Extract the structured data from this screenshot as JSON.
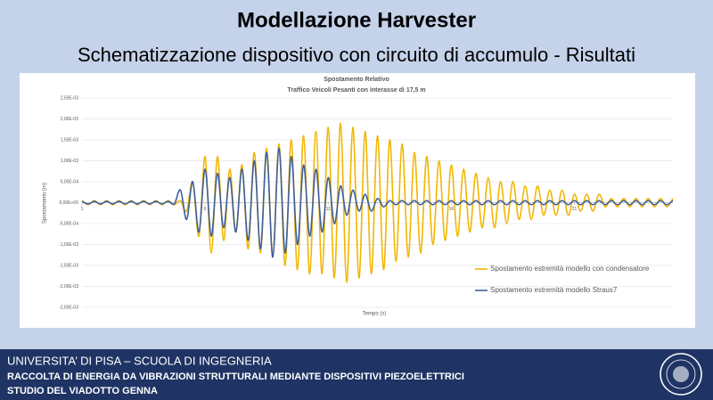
{
  "slide": {
    "title": "Modellazione Harvester",
    "subtitle": "Schematizzazione dispositivo con circuito di accumulo - Risultati"
  },
  "chart_data": {
    "type": "line",
    "title": "Spostamento Relativo",
    "subtitle": "Traffico Veicoli Pesanti con interasse di 17,5 m",
    "x_label": "Tempo (s)",
    "y_label": "Spostamento (m)",
    "x": [
      1,
      1.25,
      1.5,
      1.75,
      2,
      2.25,
      2.5,
      2.75,
      3,
      3.25,
      3.5,
      3.75,
      4,
      4.25,
      4.5,
      4.75,
      5,
      5.25,
      5.5,
      5.75,
      6,
      6.25,
      6.5,
      6.75,
      7,
      7.25,
      7.5,
      7.75,
      8,
      8.25,
      8.5,
      8.75,
      9,
      9.25,
      9.5,
      9.75,
      10,
      10.25,
      10.5,
      10.75,
      11,
      11.25,
      11.5,
      11.75,
      12,
      12.25,
      12.5,
      12.75,
      13,
      13.25,
      13.5,
      13.75,
      14,
      14.25,
      14.5,
      14.75,
      15,
      15.25,
      15.5,
      15.75,
      16,
      16.25,
      16.5,
      16.75,
      17,
      17.25,
      17.5,
      17.75,
      18,
      18.25,
      18.5,
      18.75,
      19,
      19.25,
      19.5,
      19.75,
      20,
      20.25,
      20.5,
      20.75,
      21,
      21.25,
      21.5,
      21.75,
      22,
      22.25,
      22.5,
      22.75,
      23,
      23.25,
      23.5,
      23.75,
      24,
      24.25,
      24.5,
      24.75,
      25
    ],
    "xlim": [
      1,
      25
    ],
    "xticks": [
      1,
      6,
      11,
      16,
      21
    ],
    "ylim": [
      -0.0025,
      0.0025
    ],
    "yticks": [
      {
        "value": -0.0025,
        "label": "-2,50E-03"
      },
      {
        "value": -0.002,
        "label": "-2,00E-03"
      },
      {
        "value": -0.0015,
        "label": "-1,50E-03"
      },
      {
        "value": -0.001,
        "label": "-1,00E-03"
      },
      {
        "value": -0.0005,
        "label": "-5,00E-04"
      },
      {
        "value": 0,
        "label": "0,00E+00"
      },
      {
        "value": 0.0005,
        "label": "5,00E-04"
      },
      {
        "value": 0.001,
        "label": "1,00E-03"
      },
      {
        "value": 0.0015,
        "label": "1,50E-03"
      },
      {
        "value": 0.002,
        "label": "2,00E-03"
      },
      {
        "value": 0.0025,
        "label": "2,50E-03"
      }
    ],
    "grid": true,
    "legend": "lower-right",
    "series": [
      {
        "name": "Spostamento estremità modello con condensatore",
        "color": "#f2b600",
        "values": [
          5e-05,
          -5e-05,
          5e-05,
          -5e-05,
          5e-05,
          -5e-05,
          5e-05,
          -5e-05,
          5e-05,
          -5e-05,
          5e-05,
          -5e-05,
          5e-05,
          -5e-05,
          5e-05,
          -5e-05,
          5e-05,
          -0.0002,
          0.0005,
          -0.0008,
          0.0011,
          -0.0012,
          0.0011,
          -0.0009,
          0.0008,
          -0.0007,
          0.0009,
          -0.0011,
          0.0012,
          -0.0012,
          0.0013,
          -0.0013,
          0.0014,
          -0.0015,
          0.0015,
          -0.0016,
          0.0016,
          -0.0017,
          0.0017,
          -0.0017,
          0.0018,
          -0.0018,
          0.0019,
          -0.0019,
          0.0018,
          -0.0018,
          0.0017,
          -0.0017,
          0.0016,
          -0.0016,
          0.0015,
          -0.0014,
          0.0014,
          -0.0013,
          0.0012,
          -0.0012,
          0.0011,
          -0.001,
          0.001,
          -0.0009,
          0.0009,
          -0.0008,
          0.0008,
          -0.0007,
          0.0007,
          -0.0006,
          0.0006,
          -0.0006,
          0.0005,
          -0.0005,
          0.0005,
          -0.0004,
          0.0004,
          -0.0004,
          0.0004,
          -0.0003,
          0.0003,
          -0.0003,
          0.0003,
          -0.0003,
          0.0002,
          -0.0002,
          0.0002,
          -0.0002,
          0.0002,
          -0.0001,
          0.0001,
          -0.0001,
          0.0001,
          -0.0001,
          0.0001,
          -0.0001,
          0.0001,
          -0.0001,
          0.0001,
          -0.0001,
          0.0001
        ]
      },
      {
        "name": "Spostamento estremità modello Straus7",
        "color": "#3e5f9c",
        "values": [
          3e-05,
          -3e-05,
          3e-05,
          -3e-05,
          3e-05,
          -3e-05,
          3e-05,
          -3e-05,
          3e-05,
          -3e-05,
          3e-05,
          -3e-05,
          3e-05,
          -3e-05,
          3e-05,
          -3e-05,
          0.0003,
          -0.0004,
          0.0005,
          -0.0007,
          0.0008,
          -0.0008,
          0.0007,
          -0.0006,
          0.0006,
          -0.0007,
          0.0008,
          -0.0009,
          0.001,
          -0.0011,
          0.0012,
          -0.0013,
          0.0013,
          -0.0012,
          0.0011,
          -0.001,
          0.0009,
          -0.0008,
          0.0008,
          -0.0007,
          0.0006,
          -0.0005,
          0.0004,
          -0.0003,
          0.0003,
          -0.0002,
          0.0002,
          -0.0002,
          0.0001,
          -0.0001,
          5e-05,
          -5e-05,
          5e-05,
          -5e-05,
          5e-05,
          -5e-05,
          5e-05,
          -5e-05,
          5e-05,
          -5e-05,
          5e-05,
          -5e-05,
          5e-05,
          -5e-05,
          5e-05,
          -5e-05,
          5e-05,
          -5e-05,
          5e-05,
          -5e-05,
          5e-05,
          -5e-05,
          5e-05,
          -5e-05,
          5e-05,
          -5e-05,
          5e-05,
          -5e-05,
          5e-05,
          -5e-05,
          5e-05,
          -5e-05,
          5e-05,
          -5e-05,
          5e-05,
          -5e-05,
          5e-05,
          -5e-05,
          5e-05,
          -5e-05,
          5e-05,
          -5e-05,
          5e-05,
          -5e-05,
          5e-05,
          -5e-05,
          5e-05
        ]
      }
    ]
  },
  "footer": {
    "lines": [
      "UNIVERSITA’ DI PISA – SCUOLA DI INGEGNERIA",
      "RACCOLTA DI ENERGIA DA VIBRAZIONI STRUTTURALI MEDIANTE DISPOSITIVI PIEZOELETTRICI",
      "STUDIO DEL VIADOTTO GENNA"
    ]
  }
}
